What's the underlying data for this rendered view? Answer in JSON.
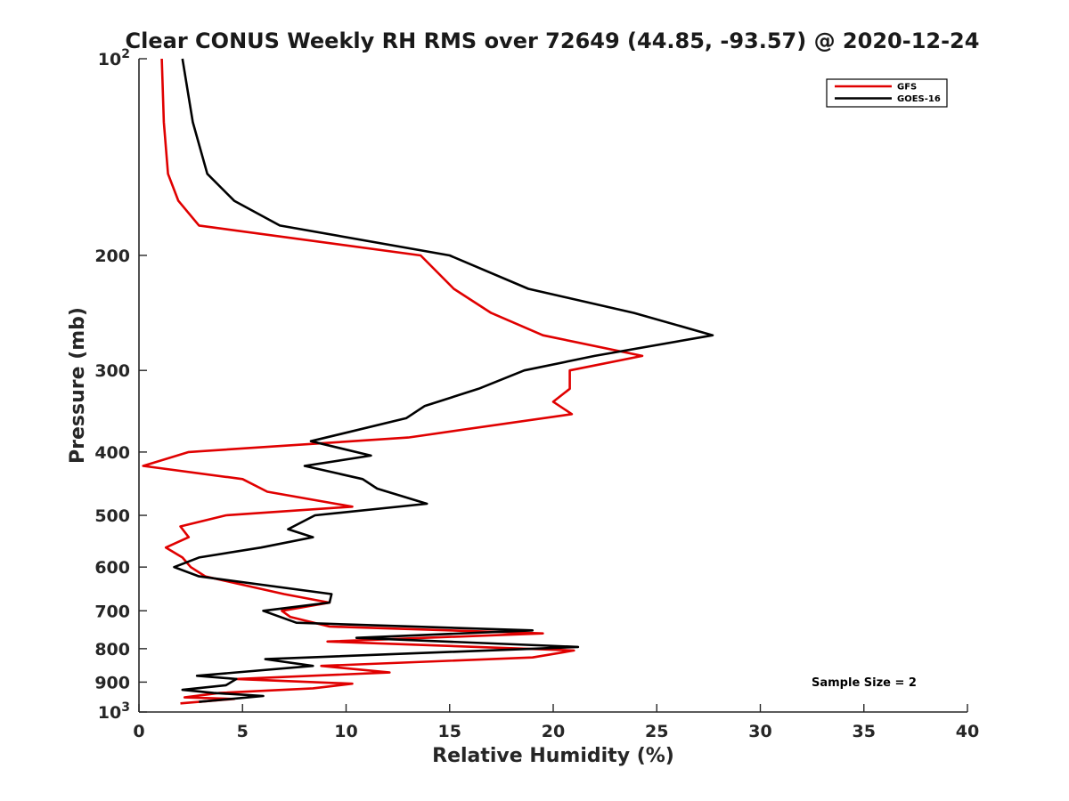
{
  "chart_data": {
    "type": "line",
    "title": "Clear CONUS Weekly RH RMS over 72649 (44.85, -93.57) @ 2020-12-24",
    "xlabel": "Relative Humidity (%)",
    "ylabel": "Pressure (mb)",
    "xlim": [
      0,
      40
    ],
    "ylim": [
      100,
      1000
    ],
    "y_scale": "log",
    "y_reversed": true,
    "grid": false,
    "legend_placement": "top-right",
    "x_ticks": [
      "0",
      "5",
      "10",
      "15",
      "20",
      "25",
      "30",
      "35",
      "40"
    ],
    "y_ticks": [
      {
        "value": 100,
        "label_base": "10",
        "label_exp": "2"
      },
      {
        "value": 200,
        "label": "200"
      },
      {
        "value": 300,
        "label": "300"
      },
      {
        "value": 400,
        "label": "400"
      },
      {
        "value": 500,
        "label": "500"
      },
      {
        "value": 600,
        "label": "600"
      },
      {
        "value": 700,
        "label": "700"
      },
      {
        "value": 800,
        "label": "800"
      },
      {
        "value": 900,
        "label": "900"
      },
      {
        "value": 1000,
        "label_base": "10",
        "label_exp": "3"
      }
    ],
    "annotation": "Sample Size = 2",
    "series": [
      {
        "name": "GFS",
        "color": "#e00000",
        "points": [
          [
            1.1,
            100
          ],
          [
            1.2,
            125
          ],
          [
            1.4,
            150
          ],
          [
            1.9,
            165
          ],
          [
            2.9,
            180
          ],
          [
            13.6,
            200
          ],
          [
            15.2,
            225
          ],
          [
            17,
            245
          ],
          [
            19.5,
            265
          ],
          [
            24.3,
            285
          ],
          [
            20.8,
            300
          ],
          [
            20.8,
            320
          ],
          [
            20,
            335
          ],
          [
            20.9,
            350
          ],
          [
            13,
            380
          ],
          [
            2.4,
            400
          ],
          [
            0.2,
            420
          ],
          [
            5,
            440
          ],
          [
            6.2,
            460
          ],
          [
            10.3,
            485
          ],
          [
            4.2,
            500
          ],
          [
            2,
            520
          ],
          [
            2.4,
            540
          ],
          [
            1.3,
            560
          ],
          [
            2.1,
            580
          ],
          [
            2.5,
            600
          ],
          [
            3.2,
            620
          ],
          [
            7,
            660
          ],
          [
            9.2,
            680
          ],
          [
            6.9,
            700
          ],
          [
            7.3,
            715
          ],
          [
            9.2,
            740
          ],
          [
            19.5,
            758
          ],
          [
            9.1,
            780
          ],
          [
            21,
            805
          ],
          [
            19,
            825
          ],
          [
            8.8,
            850
          ],
          [
            12.1,
            870
          ],
          [
            4.7,
            890
          ],
          [
            10.3,
            905
          ],
          [
            8.4,
            920
          ],
          [
            3.9,
            935
          ],
          [
            2.2,
            950
          ],
          [
            4.6,
            955
          ],
          [
            2,
            970
          ]
        ]
      },
      {
        "name": "GOES-16",
        "color": "#000000",
        "points": [
          [
            2.1,
            100
          ],
          [
            2.6,
            125
          ],
          [
            3.3,
            150
          ],
          [
            4.6,
            165
          ],
          [
            6.8,
            180
          ],
          [
            15,
            200
          ],
          [
            18.8,
            225
          ],
          [
            23.9,
            245
          ],
          [
            27.7,
            265
          ],
          [
            22,
            285
          ],
          [
            18.6,
            300
          ],
          [
            16.4,
            320
          ],
          [
            13.8,
            340
          ],
          [
            12.9,
            355
          ],
          [
            8.3,
            385
          ],
          [
            11.2,
            405
          ],
          [
            8,
            420
          ],
          [
            10.8,
            440
          ],
          [
            11.5,
            455
          ],
          [
            13.9,
            480
          ],
          [
            8.5,
            500
          ],
          [
            7.2,
            525
          ],
          [
            8.4,
            540
          ],
          [
            5.9,
            560
          ],
          [
            2.9,
            580
          ],
          [
            1.7,
            600
          ],
          [
            2.9,
            620
          ],
          [
            9.3,
            660
          ],
          [
            9.2,
            680
          ],
          [
            6,
            700
          ],
          [
            7.6,
            730
          ],
          [
            19,
            750
          ],
          [
            10.5,
            770
          ],
          [
            21.2,
            795
          ],
          [
            6.1,
            830
          ],
          [
            8.4,
            850
          ],
          [
            2.8,
            880
          ],
          [
            4.7,
            890
          ],
          [
            4.2,
            910
          ],
          [
            2.1,
            925
          ],
          [
            3.6,
            935
          ],
          [
            6,
            945
          ],
          [
            2.9,
            965
          ]
        ]
      }
    ]
  }
}
